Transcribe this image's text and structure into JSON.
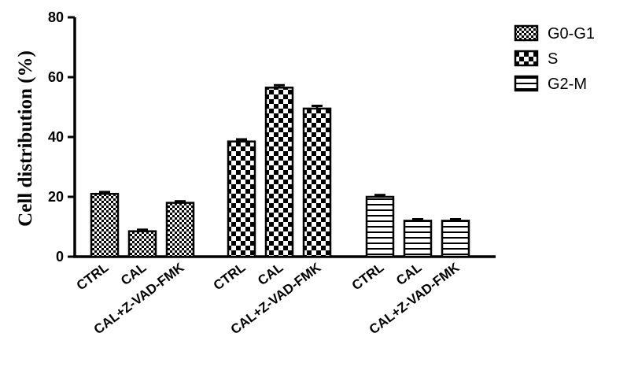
{
  "chart_data": {
    "type": "bar",
    "ylabel": "Cell distribution (%)",
    "ylim": [
      0,
      80
    ],
    "yticks": [
      0,
      20,
      40,
      60,
      80
    ],
    "grid": false,
    "legend_position": "top-right",
    "series": [
      {
        "name": "G0-G1",
        "pattern": "fine-checker",
        "categories": [
          "CTRL",
          "CAL",
          "CAL+Z-VAD-FMK"
        ],
        "values": [
          21,
          8.5,
          18
        ],
        "errors": [
          0.6,
          0.5,
          0.5
        ]
      },
      {
        "name": "S",
        "pattern": "coarse-checker",
        "categories": [
          "CTRL",
          "CAL",
          "CAL+Z-VAD-FMK"
        ],
        "values": [
          38.5,
          56.5,
          49.5
        ],
        "errors": [
          0.7,
          0.8,
          0.9
        ]
      },
      {
        "name": "G2-M",
        "pattern": "horizontal-stripes",
        "categories": [
          "CTRL",
          "CAL",
          "CAL+Z-VAD-FMK"
        ],
        "values": [
          20,
          12,
          12
        ],
        "errors": [
          0.6,
          0.5,
          0.5
        ]
      }
    ]
  }
}
